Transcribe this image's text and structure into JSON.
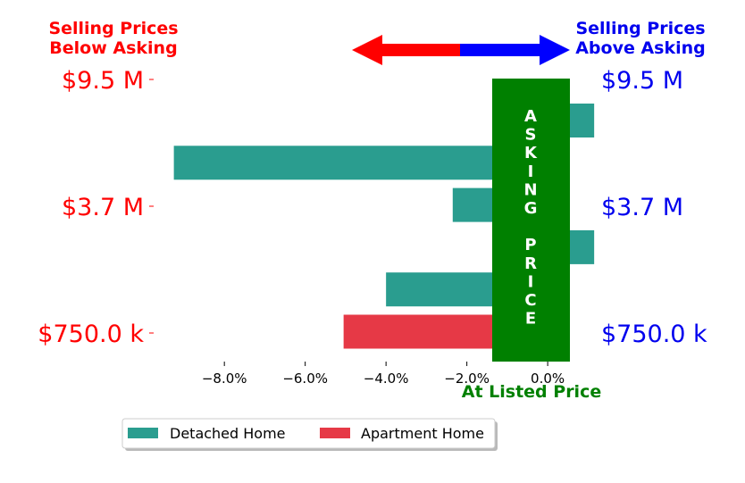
{
  "chart_data": {
    "type": "bar",
    "orientation": "horizontal",
    "xlim": [
      -9.75,
      0.55
    ],
    "xticks": [
      -8,
      -6,
      -4,
      -2,
      0
    ],
    "xtick_labels": [
      "−8.0%",
      "−6.0%",
      "−4.0%",
      "−2.0%",
      "0.0%"
    ],
    "ytick_labels": [
      "$9.5 M",
      "$3.7 M",
      "$750.0 k"
    ],
    "ytick_labels_right": [
      "$9.5 M",
      "$3.7 M",
      "$750.0 k"
    ],
    "series": [
      {
        "name": "Detached Home",
        "color": "#2a9d8f",
        "values": [
          1.15,
          -9.25,
          -2.35,
          1.15,
          -4.0
        ]
      },
      {
        "name": "Apartment Home",
        "color": "#e63946",
        "values": [
          -5.05
        ]
      }
    ],
    "legend_placement": "bottom-center",
    "grid": false
  },
  "annotations": {
    "below_asking_line1": "Selling Prices",
    "below_asking_line2": "Below Asking",
    "above_asking_line1": "Selling Prices",
    "above_asking_line2": "Above Asking",
    "asking_price_letters": [
      "A",
      "S",
      "K",
      "I",
      "N",
      "G",
      "",
      "P",
      "R",
      "I",
      "C",
      "E"
    ],
    "at_listed_price": "At Listed Price"
  },
  "colors": {
    "below": "#ff0000",
    "above": "#0000ee",
    "asking": "#008000",
    "arrow_left": "#ff0000",
    "arrow_right": "#0000ff"
  }
}
